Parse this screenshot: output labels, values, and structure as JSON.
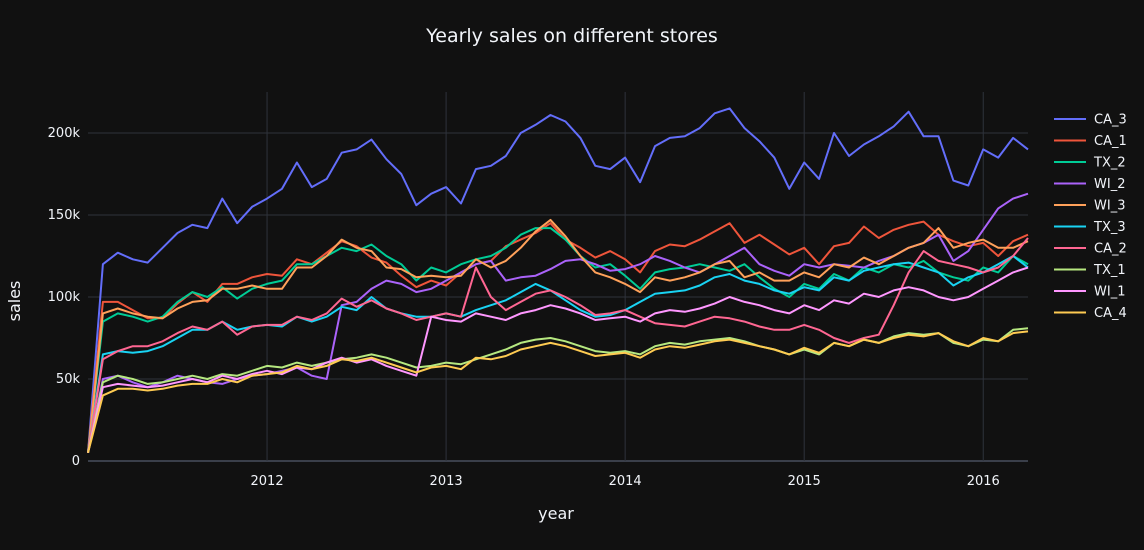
{
  "chart_data": {
    "type": "line",
    "title": "Yearly sales on different stores",
    "xlabel": "year",
    "ylabel": "sales",
    "x_start": "2011-01",
    "x_end": "2016-04",
    "xlim": [
      "2011-01",
      "2016-04"
    ],
    "ylim": [
      0,
      225000
    ],
    "x_ticks": [
      "2012",
      "2013",
      "2014",
      "2015",
      "2016"
    ],
    "y_ticks": [
      0,
      50000,
      100000,
      150000,
      200000
    ],
    "y_tick_labels": [
      "0",
      "50k",
      "100k",
      "150k",
      "200k"
    ],
    "grid": true,
    "legend_position": "right",
    "series": [
      {
        "name": "CA_3",
        "color": "#636efa",
        "values": [
          5000,
          120000,
          127000,
          123000,
          121000,
          130000,
          139000,
          144000,
          142000,
          160000,
          145000,
          155000,
          160000,
          166000,
          182000,
          167000,
          172000,
          188000,
          190000,
          196000,
          184000,
          175000,
          156000,
          163000,
          167000,
          157000,
          178000,
          180000,
          186000,
          200000,
          205000,
          211000,
          207000,
          197000,
          180000,
          178000,
          185000,
          170000,
          192000,
          197000,
          198000,
          203000,
          212000,
          215000,
          203000,
          195000,
          185000,
          166000,
          182000,
          172000,
          200000,
          186000,
          193000,
          198000,
          204000,
          213000,
          198000,
          198000,
          171000,
          168000,
          190000,
          185000,
          197000,
          190000
        ]
      },
      {
        "name": "CA_1",
        "color": "#ef553b",
        "values": [
          5000,
          97000,
          97000,
          92000,
          87000,
          87000,
          96000,
          103000,
          97000,
          108000,
          108000,
          112000,
          114000,
          113000,
          123000,
          120000,
          127000,
          134000,
          131000,
          124000,
          121000,
          113000,
          106000,
          110000,
          107000,
          115000,
          120000,
          122000,
          131000,
          135000,
          139000,
          145000,
          135000,
          130000,
          124000,
          128000,
          123000,
          115000,
          128000,
          132000,
          131000,
          135000,
          140000,
          145000,
          133000,
          138000,
          132000,
          126000,
          130000,
          120000,
          131000,
          133000,
          143000,
          136000,
          141000,
          144000,
          146000,
          138000,
          134000,
          131000,
          133000,
          125000,
          134000,
          138000
        ]
      },
      {
        "name": "TX_2",
        "color": "#00cc96",
        "values": [
          5000,
          85000,
          90000,
          88000,
          85000,
          88000,
          97000,
          103000,
          100000,
          106000,
          99000,
          105000,
          108000,
          110000,
          120000,
          120000,
          125000,
          130000,
          128000,
          132000,
          125000,
          120000,
          110000,
          118000,
          115000,
          120000,
          123000,
          125000,
          130000,
          138000,
          142000,
          142000,
          135000,
          125000,
          118000,
          120000,
          113000,
          105000,
          115000,
          117000,
          118000,
          120000,
          118000,
          116000,
          120000,
          112000,
          105000,
          100000,
          108000,
          105000,
          114000,
          110000,
          118000,
          115000,
          120000,
          118000,
          122000,
          115000,
          112000,
          110000,
          118000,
          115000,
          125000,
          120000
        ]
      },
      {
        "name": "WI_2",
        "color": "#ab63fa",
        "values": [
          5000,
          50000,
          52000,
          48000,
          45000,
          48000,
          52000,
          50000,
          48000,
          47000,
          50000,
          52000,
          53000,
          55000,
          57000,
          52000,
          50000,
          95000,
          97000,
          105000,
          110000,
          108000,
          103000,
          105000,
          110000,
          115000,
          120000,
          122000,
          110000,
          112000,
          113000,
          117000,
          122000,
          123000,
          120000,
          116000,
          117000,
          120000,
          125000,
          122000,
          118000,
          115000,
          120000,
          125000,
          130000,
          120000,
          116000,
          113000,
          120000,
          118000,
          120000,
          119000,
          118000,
          122000,
          125000,
          130000,
          133000,
          138000,
          122000,
          128000,
          141000,
          154000,
          160000,
          163000
        ]
      },
      {
        "name": "WI_3",
        "color": "#ffa15a",
        "values": [
          5000,
          90000,
          93000,
          90000,
          88000,
          87000,
          93000,
          97000,
          98000,
          105000,
          105000,
          107000,
          105000,
          105000,
          118000,
          118000,
          125000,
          135000,
          130000,
          128000,
          118000,
          117000,
          112000,
          113000,
          112000,
          113000,
          123000,
          118000,
          122000,
          130000,
          140000,
          147000,
          137000,
          125000,
          115000,
          112000,
          108000,
          103000,
          112000,
          110000,
          112000,
          115000,
          120000,
          122000,
          112000,
          115000,
          110000,
          110000,
          115000,
          112000,
          120000,
          118000,
          124000,
          120000,
          125000,
          130000,
          133000,
          142000,
          130000,
          133000,
          135000,
          130000,
          130000,
          134000
        ]
      },
      {
        "name": "TX_3",
        "color": "#19d3f3",
        "values": [
          5000,
          65000,
          67000,
          66000,
          67000,
          70000,
          75000,
          80000,
          80000,
          85000,
          80000,
          82000,
          83000,
          82000,
          88000,
          85000,
          88000,
          94000,
          92000,
          100000,
          93000,
          90000,
          88000,
          88000,
          90000,
          88000,
          92000,
          95000,
          98000,
          103000,
          108000,
          104000,
          98000,
          92000,
          88000,
          89000,
          92000,
          97000,
          102000,
          103000,
          104000,
          107000,
          112000,
          114000,
          110000,
          108000,
          104000,
          102000,
          106000,
          104000,
          112000,
          110000,
          116000,
          118000,
          120000,
          121000,
          118000,
          115000,
          107000,
          112000,
          115000,
          120000,
          125000,
          118000
        ]
      },
      {
        "name": "CA_2",
        "color": "#ff6692",
        "values": [
          5000,
          62000,
          67000,
          70000,
          70000,
          73000,
          78000,
          82000,
          80000,
          85000,
          77000,
          82000,
          83000,
          83000,
          88000,
          86000,
          90000,
          99000,
          94000,
          98000,
          93000,
          90000,
          86000,
          88000,
          90000,
          88000,
          118000,
          100000,
          92000,
          97000,
          102000,
          104000,
          100000,
          95000,
          89000,
          90000,
          92000,
          88000,
          84000,
          83000,
          82000,
          85000,
          88000,
          87000,
          85000,
          82000,
          80000,
          80000,
          83000,
          80000,
          75000,
          72000,
          75000,
          77000,
          95000,
          115000,
          128000,
          122000,
          120000,
          118000,
          115000,
          118000,
          125000,
          136000
        ]
      },
      {
        "name": "TX_1",
        "color": "#b6e880",
        "values": [
          5000,
          48000,
          52000,
          50000,
          47000,
          48000,
          50000,
          52000,
          50000,
          53000,
          52000,
          55000,
          58000,
          57000,
          60000,
          58000,
          60000,
          62000,
          63000,
          65000,
          63000,
          60000,
          57000,
          58000,
          60000,
          59000,
          62000,
          65000,
          68000,
          72000,
          74000,
          75000,
          73000,
          70000,
          67000,
          66000,
          67000,
          65000,
          70000,
          72000,
          71000,
          73000,
          74000,
          75000,
          73000,
          70000,
          68000,
          65000,
          68000,
          65000,
          72000,
          70000,
          74000,
          72000,
          76000,
          78000,
          77000,
          78000,
          72000,
          70000,
          74000,
          73000,
          80000,
          81000
        ]
      },
      {
        "name": "WI_1",
        "color": "#ff97ff",
        "values": [
          5000,
          45000,
          47000,
          46000,
          45000,
          46000,
          48000,
          50000,
          48000,
          52000,
          50000,
          53000,
          55000,
          53000,
          57000,
          56000,
          60000,
          63000,
          60000,
          62000,
          58000,
          55000,
          52000,
          88000,
          86000,
          85000,
          90000,
          88000,
          86000,
          90000,
          92000,
          95000,
          93000,
          90000,
          86000,
          87000,
          88000,
          85000,
          90000,
          92000,
          91000,
          93000,
          96000,
          100000,
          97000,
          95000,
          92000,
          90000,
          95000,
          92000,
          98000,
          96000,
          102000,
          100000,
          104000,
          106000,
          104000,
          100000,
          98000,
          100000,
          105000,
          110000,
          115000,
          118000
        ]
      },
      {
        "name": "CA_4",
        "color": "#fecb52",
        "values": [
          5000,
          40000,
          44000,
          44000,
          43000,
          44000,
          46000,
          47000,
          47000,
          50000,
          48000,
          52000,
          53000,
          54000,
          58000,
          56000,
          58000,
          62000,
          61000,
          63000,
          60000,
          57000,
          54000,
          57000,
          58000,
          56000,
          63000,
          62000,
          64000,
          68000,
          70000,
          72000,
          70000,
          67000,
          64000,
          65000,
          66000,
          63000,
          68000,
          70000,
          69000,
          71000,
          73000,
          74000,
          72000,
          70000,
          68000,
          65000,
          69000,
          66000,
          72000,
          70000,
          74000,
          72000,
          75000,
          77000,
          76000,
          78000,
          73000,
          70000,
          75000,
          73000,
          78000,
          79000
        ]
      }
    ]
  }
}
